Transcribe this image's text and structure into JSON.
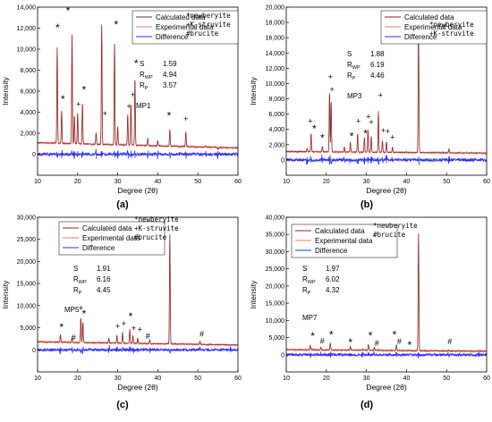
{
  "colors": {
    "calculated": "#8b2323",
    "experimental": "#e07a7a",
    "difference": "#2b2bff",
    "axis": "#000000"
  },
  "chart_data": [
    {
      "type": "line",
      "panel_label": "(a)",
      "sample": "MP1",
      "xlabel": "Degree (2θ)",
      "ylabel": "Intensity",
      "xlim": [
        10,
        60
      ],
      "ylim": [
        -2000,
        14000
      ],
      "xticks": [
        "10",
        "20",
        "30",
        "40",
        "50",
        "60"
      ],
      "yticks": [
        "0",
        "2,000",
        "4,000",
        "6,000",
        "8,000",
        "10,000",
        "12,000",
        "14,000"
      ],
      "legend": [
        "Calculated data",
        "Experimental data",
        "Difference"
      ],
      "stats": [
        {
          "k": "S",
          "sub": "",
          "v": "1.59"
        },
        {
          "k": "R",
          "sub": "WP",
          "v": "4.94"
        },
        {
          "k": "R",
          "sub": "P",
          "v": "3.57"
        }
      ],
      "phase_legend": [
        "*newberyite",
        "+K-struvite",
        "#brucite"
      ],
      "baseline": 1100,
      "baseline_end": 600,
      "peaks": [
        {
          "x": 14.9,
          "y": 10300
        },
        {
          "x": 16.0,
          "y": 4200
        },
        {
          "x": 18.6,
          "y": 11500
        },
        {
          "x": 19.2,
          "y": 3800
        },
        {
          "x": 20.0,
          "y": 4000
        },
        {
          "x": 21.2,
          "y": 5000
        },
        {
          "x": 24.6,
          "y": 2200
        },
        {
          "x": 26.0,
          "y": 12500
        },
        {
          "x": 29.2,
          "y": 11000
        },
        {
          "x": 30.0,
          "y": 2800
        },
        {
          "x": 32.5,
          "y": 4000
        },
        {
          "x": 33.3,
          "y": 5000
        },
        {
          "x": 34.3,
          "y": 7500
        },
        {
          "x": 37.5,
          "y": 1800
        },
        {
          "x": 40.0,
          "y": 1600
        },
        {
          "x": 43.0,
          "y": 2700
        },
        {
          "x": 47.0,
          "y": 2500
        },
        {
          "x": 52.0,
          "y": 1200
        },
        {
          "x": 55.0,
          "y": 900
        }
      ],
      "markers": [
        {
          "x": 15.0,
          "y": 11700,
          "t": "*"
        },
        {
          "x": 16.3,
          "y": 4900,
          "t": "*"
        },
        {
          "x": 17.6,
          "y": 13300,
          "t": "*"
        },
        {
          "x": 20.2,
          "y": 4500,
          "t": "+"
        },
        {
          "x": 21.6,
          "y": 5800,
          "t": "*"
        },
        {
          "x": 26.8,
          "y": 3600,
          "t": "+"
        },
        {
          "x": 29.6,
          "y": 12000,
          "t": "*"
        },
        {
          "x": 32.8,
          "y": 4300,
          "t": "+"
        },
        {
          "x": 33.8,
          "y": 5400,
          "t": "+"
        },
        {
          "x": 34.6,
          "y": 8300,
          "t": "*"
        },
        {
          "x": 42.8,
          "y": 3300,
          "t": "*"
        },
        {
          "x": 47.0,
          "y": 3100,
          "t": "+"
        }
      ]
    },
    {
      "type": "line",
      "panel_label": "(b)",
      "sample": "MP3",
      "xlabel": "Degree (2θ)",
      "ylabel": "Intensity",
      "xlim": [
        10,
        60
      ],
      "ylim": [
        -2000,
        20000
      ],
      "xticks": [
        "10",
        "20",
        "30",
        "40",
        "50",
        "60"
      ],
      "yticks": [
        "0",
        "2,000",
        "4,000",
        "6,000",
        "8,000",
        "10,000",
        "12,000",
        "14,000",
        "16,000",
        "18,000",
        "20,000"
      ],
      "legend": [
        "Calculated data",
        "Experimental data",
        "Difference"
      ],
      "stats": [
        {
          "k": "S",
          "sub": "",
          "v": "1.88"
        },
        {
          "k": "R",
          "sub": "WP",
          "v": "6.19"
        },
        {
          "k": "R",
          "sub": "P",
          "v": "4.46"
        }
      ],
      "phase_legend": [
        "*newberyite",
        "+K-struvite"
      ],
      "baseline": 1100,
      "baseline_end": 900,
      "peaks": [
        {
          "x": 15.2,
          "y": 1500
        },
        {
          "x": 16.2,
          "y": 3500
        },
        {
          "x": 19.0,
          "y": 1800
        },
        {
          "x": 20.8,
          "y": 9000
        },
        {
          "x": 21.2,
          "y": 7800
        },
        {
          "x": 24.5,
          "y": 1800
        },
        {
          "x": 26.0,
          "y": 2400
        },
        {
          "x": 27.8,
          "y": 3500
        },
        {
          "x": 29.5,
          "y": 3000
        },
        {
          "x": 30.4,
          "y": 4000
        },
        {
          "x": 31.2,
          "y": 3200
        },
        {
          "x": 33.0,
          "y": 6500
        },
        {
          "x": 34.0,
          "y": 2600
        },
        {
          "x": 35.0,
          "y": 2500
        },
        {
          "x": 36.5,
          "y": 1800
        },
        {
          "x": 43.0,
          "y": 17800
        },
        {
          "x": 50.6,
          "y": 1600
        }
      ],
      "markers": [
        {
          "x": 16.0,
          "y": 4700,
          "t": "+"
        },
        {
          "x": 17.0,
          "y": 3600,
          "t": "*"
        },
        {
          "x": 19.0,
          "y": 2400,
          "t": "*"
        },
        {
          "x": 21.0,
          "y": 10500,
          "t": "+"
        },
        {
          "x": 21.4,
          "y": 8900,
          "t": "+"
        },
        {
          "x": 26.3,
          "y": 2600,
          "t": "*"
        },
        {
          "x": 28.0,
          "y": 4700,
          "t": "+"
        },
        {
          "x": 30.5,
          "y": 5300,
          "t": "+"
        },
        {
          "x": 31.2,
          "y": 4600,
          "t": "+"
        },
        {
          "x": 29.8,
          "y": 3000,
          "t": "*"
        },
        {
          "x": 33.5,
          "y": 8100,
          "t": "+"
        },
        {
          "x": 34.2,
          "y": 3500,
          "t": "+"
        },
        {
          "x": 35.3,
          "y": 3400,
          "t": "+"
        },
        {
          "x": 36.5,
          "y": 2600,
          "t": "+"
        }
      ]
    },
    {
      "type": "line",
      "panel_label": "(c)",
      "sample": "MP5",
      "xlabel": "Degree (2θ)",
      "ylabel": "Intensity",
      "xlim": [
        10,
        60
      ],
      "ylim": [
        -5000,
        30000
      ],
      "xticks": [
        "10",
        "20",
        "30",
        "40",
        "50",
        "60"
      ],
      "yticks": [
        "0",
        "5,000",
        "10,000",
        "15,000",
        "20,000",
        "25,000",
        "30,000"
      ],
      "legend": [
        "Calculated data",
        "Experimental data",
        "Difference"
      ],
      "stats": [
        {
          "k": "S",
          "sub": "",
          "v": "1.91"
        },
        {
          "k": "R",
          "sub": "WP",
          "v": "6.16"
        },
        {
          "k": "R",
          "sub": "P",
          "v": "4.45"
        }
      ],
      "phase_legend": [
        "*newberyite",
        "+K-struvite",
        "#brucite"
      ],
      "baseline": 1800,
      "baseline_end": 1100,
      "peaks": [
        {
          "x": 15.7,
          "y": 3500
        },
        {
          "x": 18.6,
          "y": 2800
        },
        {
          "x": 20.8,
          "y": 7500
        },
        {
          "x": 21.3,
          "y": 6500
        },
        {
          "x": 27.8,
          "y": 2800
        },
        {
          "x": 29.8,
          "y": 3600
        },
        {
          "x": 31.2,
          "y": 4200
        },
        {
          "x": 33.0,
          "y": 5000
        },
        {
          "x": 33.8,
          "y": 3500
        },
        {
          "x": 35.0,
          "y": 3000
        },
        {
          "x": 38.0,
          "y": 2600
        },
        {
          "x": 43.0,
          "y": 26500
        },
        {
          "x": 50.5,
          "y": 2500
        },
        {
          "x": 58.2,
          "y": 1800
        }
      ],
      "markers": [
        {
          "x": 16.0,
          "y": 4300,
          "t": "*"
        },
        {
          "x": 19.0,
          "y": 2200,
          "t": "#"
        },
        {
          "x": 20.8,
          "y": 8900,
          "t": "+"
        },
        {
          "x": 21.6,
          "y": 7300,
          "t": "*"
        },
        {
          "x": 30.0,
          "y": 4700,
          "t": "+"
        },
        {
          "x": 31.5,
          "y": 5300,
          "t": "+"
        },
        {
          "x": 33.2,
          "y": 6700,
          "t": "*"
        },
        {
          "x": 34.0,
          "y": 4300,
          "t": "+"
        },
        {
          "x": 35.5,
          "y": 4000,
          "t": "+"
        },
        {
          "x": 37.5,
          "y": 2500,
          "t": "#"
        },
        {
          "x": 51.0,
          "y": 3000,
          "t": "#"
        }
      ]
    },
    {
      "type": "line",
      "panel_label": "(d)",
      "sample": "MP7",
      "xlabel": "Degree (2θ)",
      "ylabel": "Intensity",
      "xlim": [
        10,
        60
      ],
      "ylim": [
        -5000,
        40000
      ],
      "xticks": [
        "10",
        "20",
        "30",
        "40",
        "50",
        "60"
      ],
      "yticks": [
        "0",
        "5,000",
        "10,000",
        "15,000",
        "20,000",
        "25,000",
        "30,000",
        "35,000",
        "40,000"
      ],
      "legend": [
        "Calculated data",
        "Experimental data",
        "Difference"
      ],
      "stats": [
        {
          "k": "S",
          "sub": "",
          "v": "1.97"
        },
        {
          "k": "R",
          "sub": "WP",
          "v": "6.02"
        },
        {
          "k": "R",
          "sub": "P",
          "v": "4.32"
        }
      ],
      "phase_legend": [
        "*newberyite",
        "#brucite"
      ],
      "baseline": 1500,
      "baseline_end": 1000,
      "peaks": [
        {
          "x": 16.0,
          "y": 2800
        },
        {
          "x": 18.6,
          "y": 2300
        },
        {
          "x": 21.0,
          "y": 3500
        },
        {
          "x": 26.0,
          "y": 2600
        },
        {
          "x": 29.0,
          "y": 1800
        },
        {
          "x": 30.5,
          "y": 3200
        },
        {
          "x": 32.0,
          "y": 2400
        },
        {
          "x": 37.5,
          "y": 3200
        },
        {
          "x": 43.0,
          "y": 35500
        },
        {
          "x": 50.5,
          "y": 1800
        },
        {
          "x": 58.0,
          "y": 1600
        }
      ],
      "markers": [
        {
          "x": 16.6,
          "y": 4300,
          "t": "*"
        },
        {
          "x": 19.0,
          "y": 3200,
          "t": "#"
        },
        {
          "x": 21.2,
          "y": 4700,
          "t": "*"
        },
        {
          "x": 26.0,
          "y": 2600,
          "t": "*"
        },
        {
          "x": 31.0,
          "y": 4500,
          "t": "*"
        },
        {
          "x": 32.6,
          "y": 2500,
          "t": "#"
        },
        {
          "x": 37.0,
          "y": 4700,
          "t": "*"
        },
        {
          "x": 38.2,
          "y": 3000,
          "t": "#"
        },
        {
          "x": 40.8,
          "y": 1800,
          "t": "*"
        },
        {
          "x": 50.8,
          "y": 3000,
          "t": "#"
        }
      ]
    }
  ]
}
